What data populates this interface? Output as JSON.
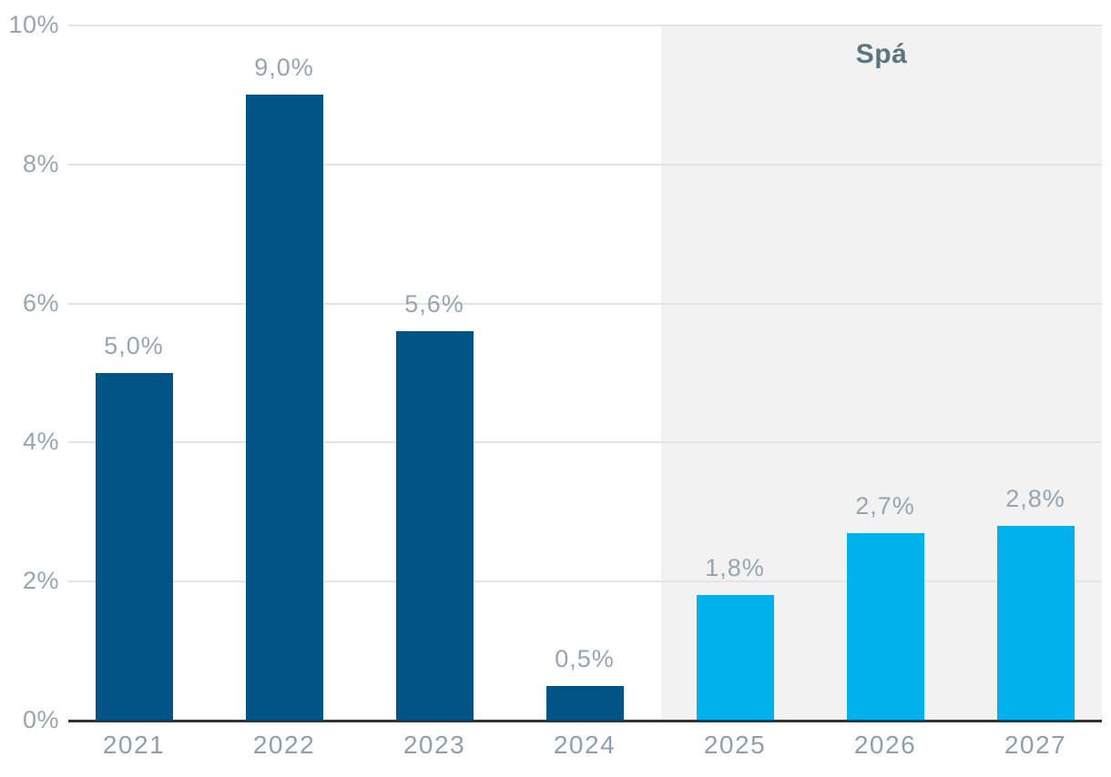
{
  "chart_data": {
    "type": "bar",
    "title": "",
    "xlabel": "",
    "ylabel": "",
    "categories": [
      "2021",
      "2022",
      "2023",
      "2024",
      "2025",
      "2026",
      "2027"
    ],
    "values": [
      5.0,
      9.0,
      5.6,
      0.5,
      1.8,
      2.7,
      2.8
    ],
    "value_labels": [
      "5,0%",
      "9,0%",
      "5,6%",
      "0,5%",
      "1,8%",
      "2,7%",
      "2,8%"
    ],
    "bar_styles": [
      "actual",
      "actual",
      "actual",
      "actual",
      "forecast",
      "forecast",
      "forecast"
    ],
    "ylim": [
      0,
      10
    ],
    "ytick_values": [
      0,
      2,
      4,
      6,
      8,
      10
    ],
    "ytick_labels": [
      "0%",
      "2%",
      "4%",
      "6%",
      "8%",
      "10%"
    ],
    "grid": true,
    "legend": "none",
    "forecast": {
      "label": "Spá",
      "categories": [
        "2025",
        "2026",
        "2027"
      ]
    },
    "colors": {
      "actual_bar": "#005587",
      "forecast_bar": "#00b1ec",
      "forecast_background": "#f2f2f2",
      "gridline": "#e4e4e4",
      "axis_line": "#333333",
      "ytick_label": "#97a5b1",
      "xtick_label": "#8da0ac",
      "value_label": "#97a5b1",
      "forecast_label": "#5d7582",
      "background": "#ffffff"
    }
  }
}
